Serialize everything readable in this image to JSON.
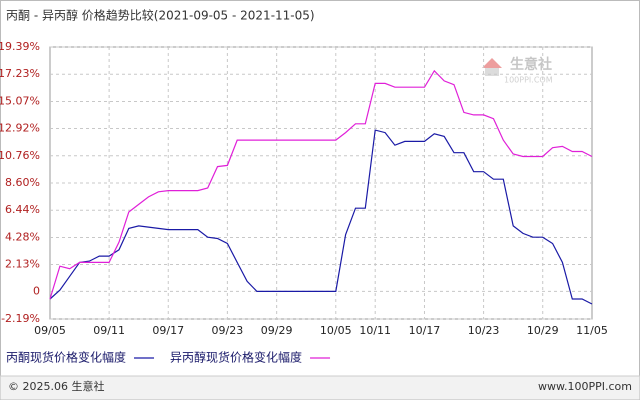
{
  "chart_data": {
    "type": "line",
    "title": "丙酮 - 异丙醇 价格趋势比较(2021-09-05 - 2021-11-05)",
    "categories": [
      "09/05",
      null,
      null,
      null,
      null,
      null,
      "09/11",
      null,
      null,
      null,
      null,
      null,
      "09/17",
      null,
      null,
      null,
      null,
      null,
      "09/23",
      null,
      null,
      null,
      null,
      "09/29",
      null,
      null,
      null,
      null,
      null,
      "10/05",
      null,
      null,
      null,
      "10/11",
      null,
      null,
      null,
      null,
      "10/17",
      null,
      null,
      null,
      null,
      null,
      "10/23",
      null,
      null,
      null,
      null,
      null,
      "10/29",
      null,
      null,
      null,
      null,
      "11/05"
    ],
    "series": [
      {
        "name": "丙酮现货价格变化幅度",
        "color": "#1a1aa6",
        "values": [
          -0.6,
          0.1,
          1.2,
          2.3,
          2.4,
          2.8,
          2.8,
          3.3,
          5.0,
          5.2,
          5.1,
          5.0,
          4.9,
          4.9,
          4.9,
          4.9,
          4.3,
          4.2,
          3.8,
          2.3,
          0.8,
          0,
          0,
          0,
          0,
          0,
          0,
          0,
          0,
          0,
          4.5,
          6.6,
          6.6,
          12.8,
          12.6,
          11.6,
          11.9,
          11.9,
          11.9,
          12.5,
          12.3,
          11.0,
          11.0,
          9.5,
          9.5,
          8.9,
          8.9,
          5.2,
          4.6,
          4.3,
          4.3,
          3.8,
          2.3,
          -0.6,
          -0.6,
          -1.0
        ]
      },
      {
        "name": "异丙醇现货价格变化幅度",
        "color": "#e020d8",
        "values": [
          -0.6,
          2.0,
          1.8,
          2.3,
          2.3,
          2.3,
          2.3,
          3.9,
          6.3,
          6.9,
          7.5,
          7.9,
          8.0,
          8.0,
          8.0,
          8.0,
          8.2,
          9.9,
          10.0,
          12.0,
          12.0,
          12.0,
          12.0,
          12.0,
          12.0,
          12.0,
          12.0,
          12.0,
          12.0,
          12.0,
          12.6,
          13.3,
          13.3,
          16.5,
          16.5,
          16.2,
          16.2,
          16.2,
          16.2,
          17.5,
          16.7,
          16.4,
          14.2,
          14.0,
          14.0,
          13.7,
          12.0,
          10.9,
          10.7,
          10.7,
          10.7,
          11.4,
          11.5,
          11.1,
          11.1,
          10.7
        ]
      }
    ],
    "ylim": [
      -2.19,
      19.39
    ],
    "yticks": [
      {
        "value": -2.19,
        "label": "-2.19%"
      },
      0,
      {
        "value": 2.13,
        "label": "2.13%"
      },
      {
        "value": 4.28,
        "label": "4.28%"
      },
      {
        "value": 6.44,
        "label": "6.44%"
      },
      {
        "value": 8.6,
        "label": "8.60%"
      },
      {
        "value": 10.76,
        "label": "10.76%"
      },
      {
        "value": 12.92,
        "label": "12.92%"
      },
      {
        "value": 15.07,
        "label": "15.07%"
      },
      {
        "value": 17.23,
        "label": "17.23%"
      },
      {
        "value": 19.39,
        "label": "19.39%"
      }
    ],
    "grid": true
  },
  "watermark": {
    "name": "生意社",
    "site": "100PPI.COM"
  },
  "footer": {
    "left": "© 2025.06 生意社",
    "right": "www.100PPI.com"
  }
}
